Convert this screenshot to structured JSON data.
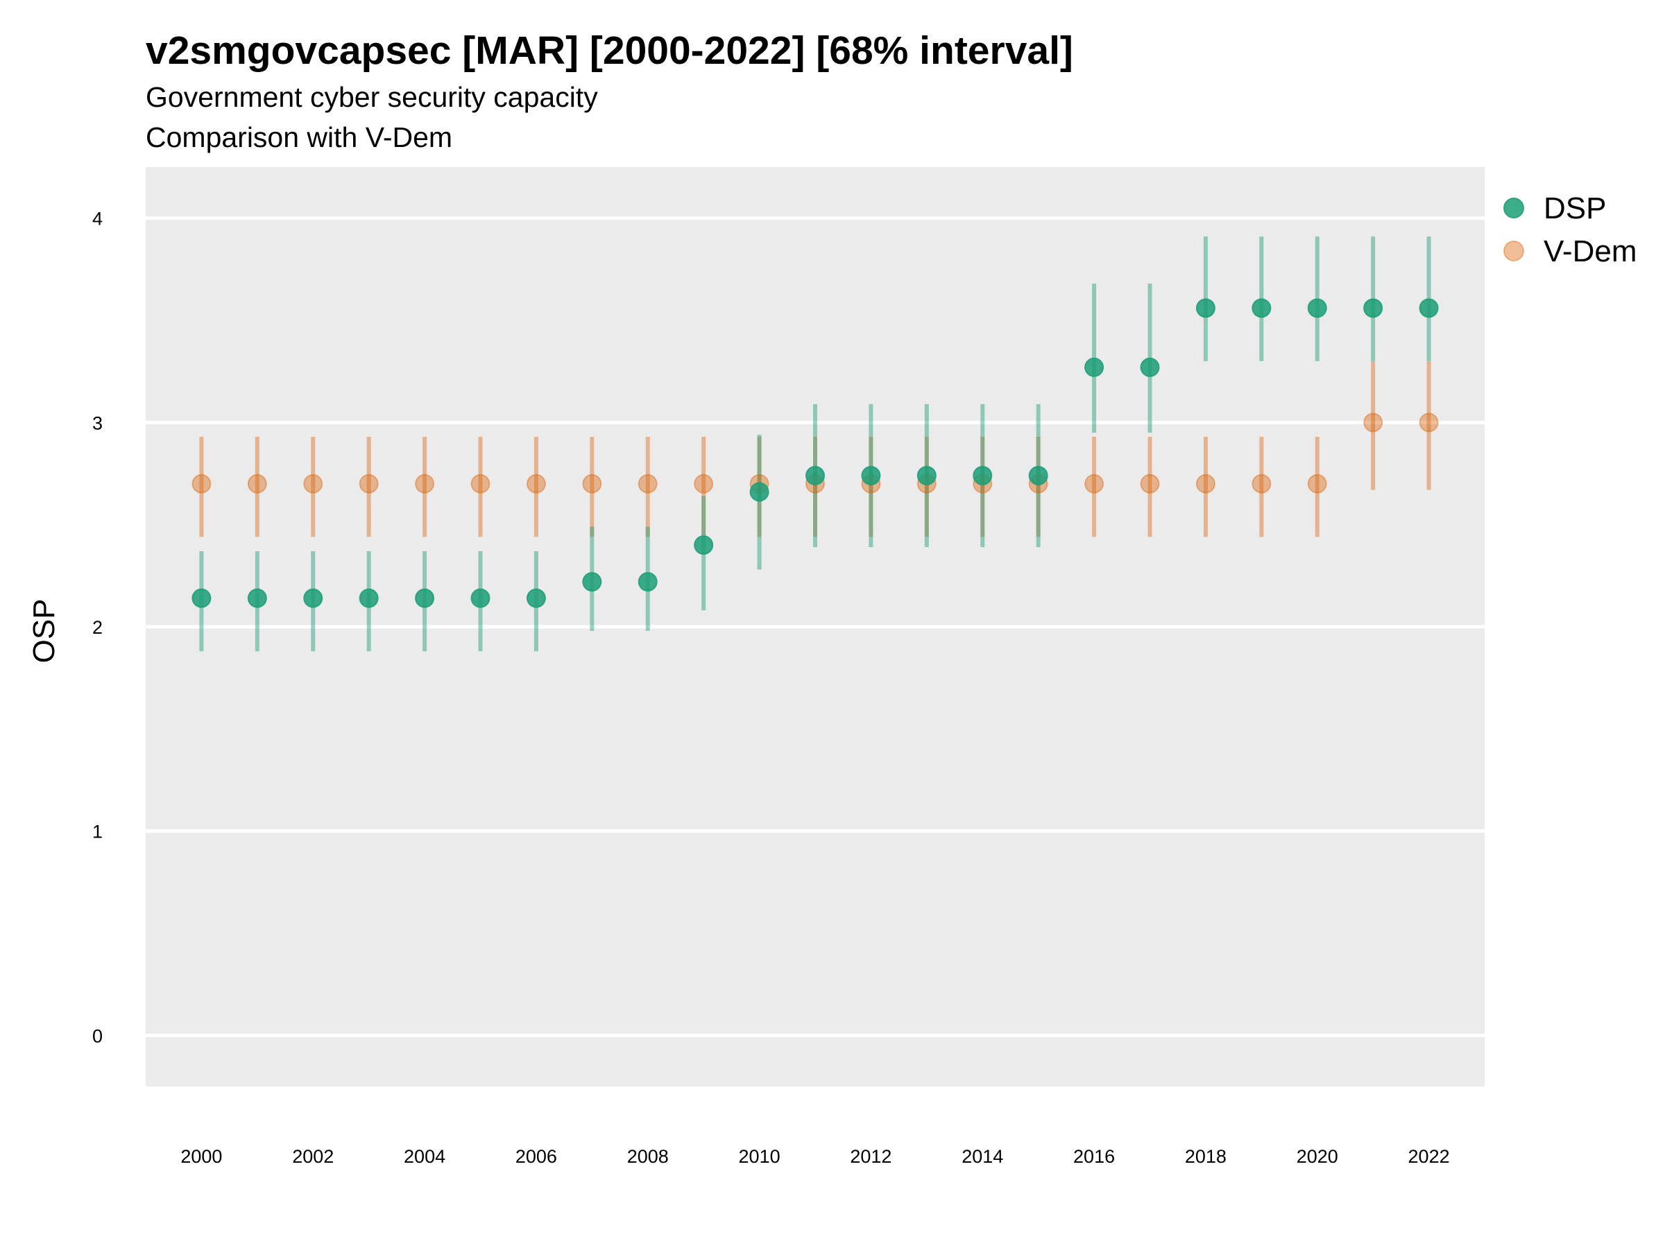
{
  "chart_data": {
    "type": "scatter",
    "title": "v2smgovcapsec [MAR] [2000-2022] [68% interval]",
    "subtitle": "Government cyber security capacity",
    "subtitle2": "Comparison with V-Dem",
    "xlabel": "",
    "ylabel": "OSP",
    "ylim": [
      -0.25,
      4.25
    ],
    "xlim": [
      1999,
      2023
    ],
    "yticks": [
      0,
      1,
      2,
      3,
      4
    ],
    "xticks": [
      2000,
      2002,
      2004,
      2006,
      2008,
      2010,
      2012,
      2014,
      2016,
      2018,
      2020,
      2022
    ],
    "grid": true,
    "legend_position": "top-right",
    "series": [
      {
        "name": "DSP",
        "color": "#1b9e77",
        "x": [
          2000,
          2001,
          2002,
          2003,
          2004,
          2005,
          2006,
          2007,
          2008,
          2009,
          2010,
          2011,
          2012,
          2013,
          2014,
          2015,
          2016,
          2017,
          2018,
          2019,
          2020,
          2021,
          2022
        ],
        "y": [
          2.14,
          2.14,
          2.14,
          2.14,
          2.14,
          2.14,
          2.14,
          2.22,
          2.22,
          2.4,
          2.66,
          2.74,
          2.74,
          2.74,
          2.74,
          2.74,
          3.27,
          3.27,
          3.56,
          3.56,
          3.56,
          3.56,
          3.56
        ],
        "lower": [
          1.88,
          1.88,
          1.88,
          1.88,
          1.88,
          1.88,
          1.88,
          1.98,
          1.98,
          2.08,
          2.28,
          2.39,
          2.39,
          2.39,
          2.39,
          2.39,
          2.95,
          2.95,
          3.3,
          3.3,
          3.3,
          3.3,
          3.3
        ],
        "upper": [
          2.37,
          2.37,
          2.37,
          2.37,
          2.37,
          2.37,
          2.37,
          2.49,
          2.49,
          2.64,
          2.94,
          3.09,
          3.09,
          3.09,
          3.09,
          3.09,
          3.68,
          3.68,
          3.91,
          3.91,
          3.91,
          3.91,
          3.91
        ]
      },
      {
        "name": "V-Dem",
        "color": "#d95f02",
        "x": [
          2000,
          2001,
          2002,
          2003,
          2004,
          2005,
          2006,
          2007,
          2008,
          2009,
          2010,
          2011,
          2012,
          2013,
          2014,
          2015,
          2016,
          2017,
          2018,
          2019,
          2020,
          2021,
          2022
        ],
        "y": [
          2.7,
          2.7,
          2.7,
          2.7,
          2.7,
          2.7,
          2.7,
          2.7,
          2.7,
          2.7,
          2.7,
          2.7,
          2.7,
          2.7,
          2.7,
          2.7,
          2.7,
          2.7,
          2.7,
          2.7,
          2.7,
          3.0,
          3.0
        ],
        "lower": [
          2.44,
          2.44,
          2.44,
          2.44,
          2.44,
          2.44,
          2.44,
          2.44,
          2.44,
          2.44,
          2.44,
          2.44,
          2.44,
          2.44,
          2.44,
          2.44,
          2.44,
          2.44,
          2.44,
          2.44,
          2.44,
          2.67,
          2.67
        ],
        "upper": [
          2.93,
          2.93,
          2.93,
          2.93,
          2.93,
          2.93,
          2.93,
          2.93,
          2.93,
          2.93,
          2.93,
          2.93,
          2.93,
          2.93,
          2.93,
          2.93,
          2.93,
          2.93,
          2.93,
          2.93,
          2.93,
          3.3,
          3.3
        ]
      }
    ]
  },
  "colors": {
    "panel_background": "#ebebeb",
    "grid_line": "#ffffff"
  }
}
